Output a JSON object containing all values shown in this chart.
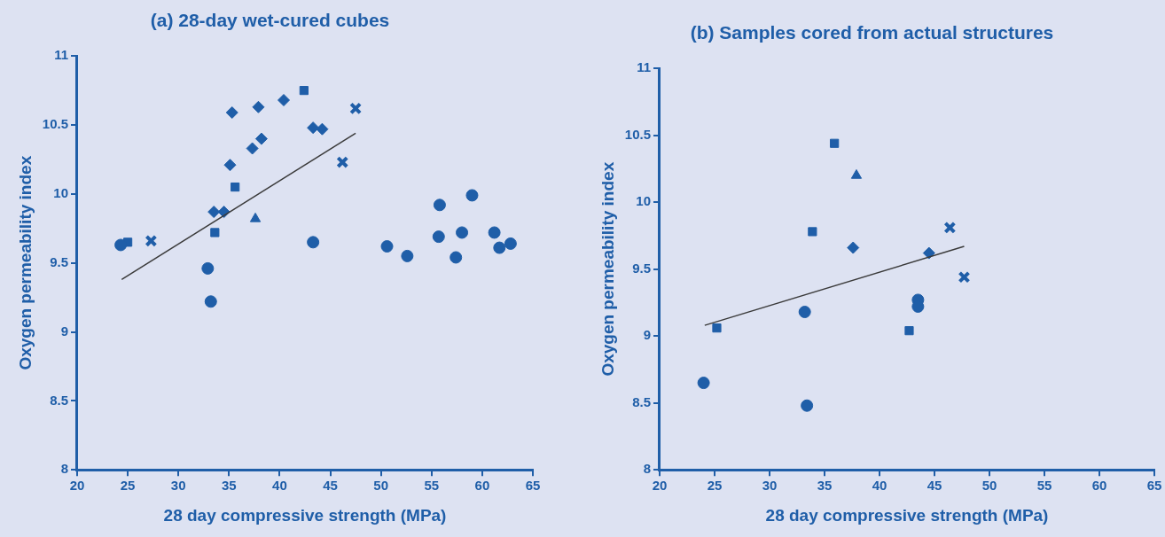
{
  "chart_data": [
    {
      "type": "scatter",
      "title": "(a) 28-day wet-cured cubes",
      "xlabel": "28 day compressive strength (MPa)",
      "ylabel": "Oxygen permeability index",
      "xlim": [
        20,
        65
      ],
      "xticks": [
        20,
        25,
        30,
        35,
        40,
        45,
        50,
        55,
        60,
        65
      ],
      "ylim": [
        8,
        11
      ],
      "yticks": [
        8,
        8.5,
        9,
        9.5,
        10,
        10.5,
        11
      ],
      "grid": false,
      "legend": false,
      "series": [
        {
          "marker": "circle",
          "color": "#1f5ea8",
          "x": [
            24.3,
            32.9,
            33.2,
            43.3
          ],
          "values": [
            9.63,
            9.46,
            9.22,
            9.65
          ]
        },
        {
          "marker": "square",
          "color": "#1f5ea8",
          "x": [
            25,
            33.6
          ],
          "values": [
            9.65,
            9.72
          ]
        },
        {
          "marker": "cross",
          "color": "#1f5ea8",
          "x": [
            27.3
          ],
          "values": [
            9.66
          ]
        },
        {
          "marker": "diamond",
          "color": "#1f5ea8",
          "x": [
            33.5,
            34.5,
            35.1,
            35.3,
            37.9,
            38.2,
            40.4
          ],
          "values": [
            9.87,
            9.87,
            10.21,
            10.59,
            10.63,
            10.4,
            10.68
          ]
        },
        {
          "marker": "square",
          "color": "#1f5ea8",
          "x": [
            35.6,
            42.4
          ],
          "values": [
            10.05,
            10.75
          ]
        },
        {
          "marker": "diamond",
          "color": "#1f5ea8",
          "x": [
            37.3,
            43.3,
            44.2
          ],
          "values": [
            10.33,
            10.48,
            10.47
          ]
        },
        {
          "marker": "triangle",
          "color": "#1f5ea8",
          "x": [
            37.6
          ],
          "values": [
            9.82
          ]
        },
        {
          "marker": "cross",
          "color": "#1f5ea8",
          "x": [
            47.5,
            46.2
          ],
          "values": [
            10.62,
            10.23
          ]
        },
        {
          "marker": "circle",
          "color": "#1f5ea8",
          "x": [
            50.6,
            52.6,
            55.8,
            55.7,
            59,
            58,
            57.4,
            61.2,
            61.7,
            62.8
          ],
          "values": [
            9.62,
            9.55,
            9.92,
            9.69,
            9.99,
            9.72,
            9.54,
            9.72,
            9.61,
            9.64
          ]
        },
        {
          "type": "line",
          "marker": "none",
          "color": "#3a3a3a",
          "x": [
            24.4,
            47.5
          ],
          "values": [
            9.38,
            10.44
          ]
        }
      ]
    },
    {
      "type": "scatter",
      "title": "(b) Samples cored from actual structures",
      "xlabel": "28 day compressive strength (MPa)",
      "ylabel": "Oxygen permeability index",
      "xlim": [
        20,
        65
      ],
      "xticks": [
        20,
        25,
        30,
        35,
        40,
        45,
        50,
        55,
        60,
        65
      ],
      "ylim": [
        8,
        11
      ],
      "yticks": [
        8,
        8.5,
        9,
        9.5,
        10,
        10.5,
        11
      ],
      "grid": false,
      "legend": false,
      "series": [
        {
          "marker": "circle",
          "color": "#1f5ea8",
          "x": [
            24,
            33.2,
            33.4,
            43.5,
            43.5
          ],
          "values": [
            8.65,
            9.18,
            8.48,
            9.27,
            9.22
          ]
        },
        {
          "marker": "square",
          "color": "#1f5ea8",
          "x": [
            25.2,
            33.9
          ],
          "values": [
            9.06,
            9.78
          ]
        },
        {
          "marker": "square",
          "color": "#1f5ea8",
          "x": [
            35.9,
            42.7
          ],
          "values": [
            10.44,
            9.04
          ]
        },
        {
          "marker": "triangle",
          "color": "#1f5ea8",
          "x": [
            37.9
          ],
          "values": [
            10.2
          ]
        },
        {
          "marker": "diamond",
          "color": "#1f5ea8",
          "x": [
            37.6,
            44.5
          ],
          "values": [
            9.66,
            9.62
          ]
        },
        {
          "marker": "cross",
          "color": "#1f5ea8",
          "x": [
            46.4,
            47.7
          ],
          "values": [
            9.81,
            9.44
          ]
        },
        {
          "type": "line",
          "marker": "none",
          "color": "#3a3a3a",
          "x": [
            24.1,
            47.7
          ],
          "values": [
            9.08,
            9.67
          ]
        }
      ]
    }
  ]
}
